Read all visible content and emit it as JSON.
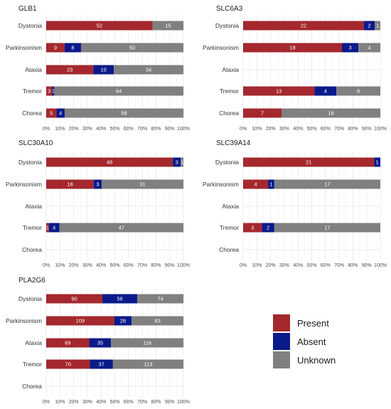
{
  "colors": {
    "Present": "#A4282D",
    "Absent": "#0A1A8A",
    "Unknown": "#808080",
    "grid": "#ebebeb",
    "background": "#ffffff"
  },
  "legend": {
    "items": [
      "Present",
      "Absent",
      "Unknown"
    ]
  },
  "chart_data": [
    {
      "type": "bar",
      "orientation": "horizontal",
      "stacked": "percent",
      "title": "GLB1",
      "categories": [
        "Dystonia",
        "Parkinsonism",
        "Ataxia",
        "Tremor",
        "Chorea"
      ],
      "series": [
        {
          "name": "Present",
          "values": [
            52,
            9,
            23,
            3,
            5
          ]
        },
        {
          "name": "Absent",
          "values": [
            0,
            8,
            10,
            1,
            4
          ]
        },
        {
          "name": "Unknown",
          "values": [
            15,
            50,
            34,
            64,
            58
          ]
        }
      ],
      "xticks": [
        "0%",
        "10%",
        "20%",
        "30%",
        "40%",
        "50%",
        "60%",
        "70%",
        "80%",
        "90%",
        "100%"
      ],
      "xlim": [
        0,
        100
      ],
      "grid": true
    },
    {
      "type": "bar",
      "orientation": "horizontal",
      "stacked": "percent",
      "title": "SLC6A3",
      "categories": [
        "Dystonia",
        "Parkinsonism",
        "Ataxia",
        "Tremor",
        "Chorea"
      ],
      "series": [
        {
          "name": "Present",
          "values": [
            22,
            18,
            0,
            13,
            7
          ]
        },
        {
          "name": "Absent",
          "values": [
            2,
            3,
            0,
            4,
            0
          ]
        },
        {
          "name": "Unknown",
          "values": [
            1,
            4,
            0,
            8,
            18
          ]
        }
      ],
      "xticks": [
        "0%",
        "10%",
        "20%",
        "30%",
        "40%",
        "50%",
        "60%",
        "70%",
        "80%",
        "90%",
        "100%"
      ],
      "xlim": [
        0,
        100
      ],
      "grid": true
    },
    {
      "type": "bar",
      "orientation": "horizontal",
      "stacked": "percent",
      "title": "SLC30A10",
      "categories": [
        "Dystonia",
        "Parkinsonism",
        "Ataxia",
        "Tremor",
        "Chorea"
      ],
      "series": [
        {
          "name": "Present",
          "values": [
            48,
            18,
            0,
            1,
            0
          ]
        },
        {
          "name": "Absent",
          "values": [
            3,
            3,
            0,
            4,
            0
          ]
        },
        {
          "name": "Unknown",
          "values": [
            1,
            31,
            0,
            47,
            0
          ]
        }
      ],
      "xticks": [
        "0%",
        "10%",
        "20%",
        "30%",
        "40%",
        "50%",
        "60%",
        "70%",
        "80%",
        "90%",
        "100%"
      ],
      "xlim": [
        0,
        100
      ],
      "grid": true
    },
    {
      "type": "bar",
      "orientation": "horizontal",
      "stacked": "percent",
      "title": "SLC39A14",
      "categories": [
        "Dystonia",
        "Parkinsonism",
        "Ataxia",
        "Tremor",
        "Chorea"
      ],
      "series": [
        {
          "name": "Present",
          "values": [
            21,
            4,
            0,
            3,
            0
          ]
        },
        {
          "name": "Absent",
          "values": [
            1,
            1,
            0,
            2,
            0
          ]
        },
        {
          "name": "Unknown",
          "values": [
            0,
            17,
            0,
            17,
            0
          ]
        }
      ],
      "xticks": [
        "0%",
        "10%",
        "20%",
        "30%",
        "40%",
        "50%",
        "60%",
        "70%",
        "80%",
        "90%",
        "100%"
      ],
      "xlim": [
        0,
        100
      ],
      "grid": true
    },
    {
      "type": "bar",
      "orientation": "horizontal",
      "stacked": "percent",
      "title": "PLA2G6",
      "categories": [
        "Dystonia",
        "Parkinsonism",
        "Ataxia",
        "Tremor",
        "Chorea"
      ],
      "series": [
        {
          "name": "Present",
          "values": [
            90,
            109,
            69,
            70,
            0
          ]
        },
        {
          "name": "Absent",
          "values": [
            56,
            28,
            35,
            37,
            0
          ]
        },
        {
          "name": "Unknown",
          "values": [
            74,
            83,
            116,
            113,
            0
          ]
        }
      ],
      "xticks": [
        "0%",
        "10%",
        "20%",
        "30%",
        "40%",
        "50%",
        "60%",
        "70%",
        "80%",
        "90%",
        "100%"
      ],
      "xlim": [
        0,
        100
      ],
      "grid": true
    }
  ]
}
